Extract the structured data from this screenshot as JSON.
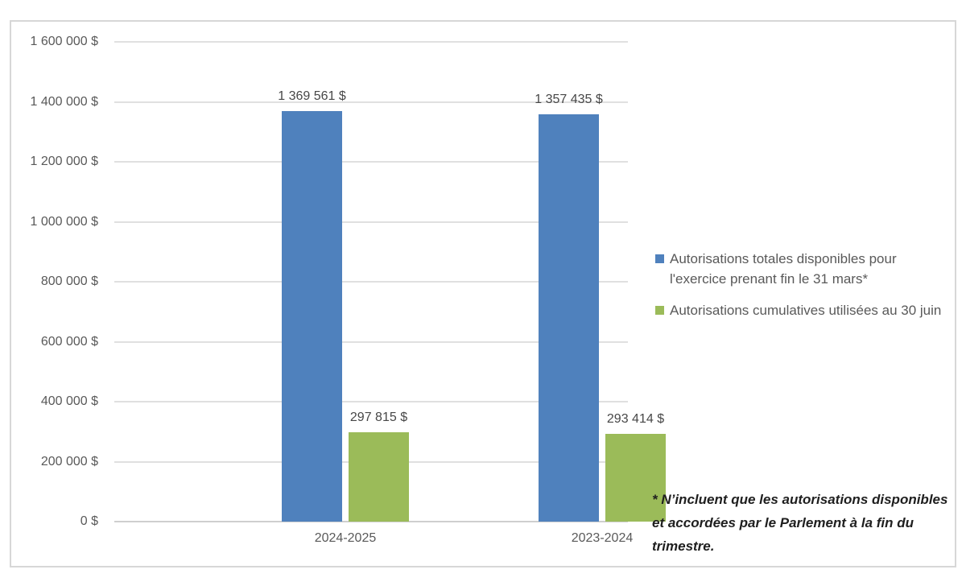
{
  "chart_data": {
    "type": "bar",
    "categories": [
      "2024-2025",
      "2023-2024"
    ],
    "series": [
      {
        "name": "Autorisations totales disponibles pour l'exercice prenant fin le 31 mars*",
        "color": "#4F81BD",
        "values": [
          1369561,
          1357435
        ],
        "labels": [
          "1 369 561 $",
          "1 357 435 $"
        ]
      },
      {
        "name": "Autorisations cumulatives utilisées au 30 juin",
        "color": "#9BBB59",
        "values": [
          297815,
          293414
        ],
        "labels": [
          "297 815 $",
          "293 414 $"
        ]
      }
    ],
    "y_axis": {
      "min": 0,
      "max": 1600000,
      "step": 200000,
      "tick_labels": [
        "0 $",
        "200 000 $",
        "400 000 $",
        "600 000 $",
        "800 000 $",
        "1 000 000 $",
        "1 200 000 $",
        "1 400 000 $",
        "1 600 000 $"
      ]
    },
    "grid": true,
    "legend_position": "right",
    "title": "",
    "xlabel": "",
    "ylabel": ""
  },
  "footnote": "* N’incluent que les autorisations disponibles et accordées par le Parlement à la fin du trimestre.",
  "colors": {
    "series_blue": "#4F81BD",
    "series_green": "#9BBB59",
    "gridline": "#e0e0e0",
    "axis_text": "#595959",
    "frame_border": "#d7d7d7"
  }
}
